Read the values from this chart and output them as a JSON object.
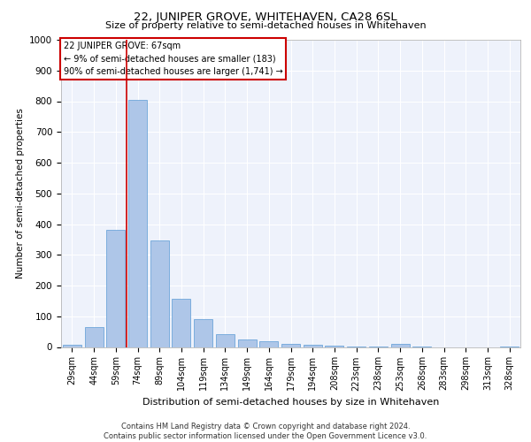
{
  "title": "22, JUNIPER GROVE, WHITEHAVEN, CA28 6SL",
  "subtitle": "Size of property relative to semi-detached houses in Whitehaven",
  "xlabel": "Distribution of semi-detached houses by size in Whitehaven",
  "ylabel": "Number of semi-detached properties",
  "footer_line1": "Contains HM Land Registry data © Crown copyright and database right 2024.",
  "footer_line2": "Contains public sector information licensed under the Open Government Licence v3.0.",
  "categories": [
    "29sqm",
    "44sqm",
    "59sqm",
    "74sqm",
    "89sqm",
    "104sqm",
    "119sqm",
    "134sqm",
    "149sqm",
    "164sqm",
    "179sqm",
    "194sqm",
    "208sqm",
    "223sqm",
    "238sqm",
    "253sqm",
    "268sqm",
    "283sqm",
    "298sqm",
    "313sqm",
    "328sqm"
  ],
  "values": [
    7,
    65,
    380,
    805,
    348,
    157,
    90,
    42,
    25,
    20,
    10,
    8,
    3,
    2,
    1,
    10,
    1,
    0,
    0,
    0,
    1
  ],
  "bar_color": "#aec6e8",
  "bar_edge_color": "#5b9bd5",
  "vline_color": "#cc0000",
  "vline_pos": 2.5,
  "annotation_title": "22 JUNIPER GROVE: 67sqm",
  "annotation_line2": "← 9% of semi-detached houses are smaller (183)",
  "annotation_line3": "90% of semi-detached houses are larger (1,741) →",
  "annotation_box_color": "#cc0000",
  "ylim": [
    0,
    1000
  ],
  "yticks": [
    0,
    100,
    200,
    300,
    400,
    500,
    600,
    700,
    800,
    900,
    1000
  ],
  "background_color": "#eef2fb",
  "grid_color": "#ffffff",
  "title_fontsize": 9.5,
  "subtitle_fontsize": 8,
  "ylabel_fontsize": 7.5,
  "xlabel_fontsize": 8,
  "tick_fontsize": 7,
  "annotation_fontsize": 7,
  "footer_fontsize": 6
}
